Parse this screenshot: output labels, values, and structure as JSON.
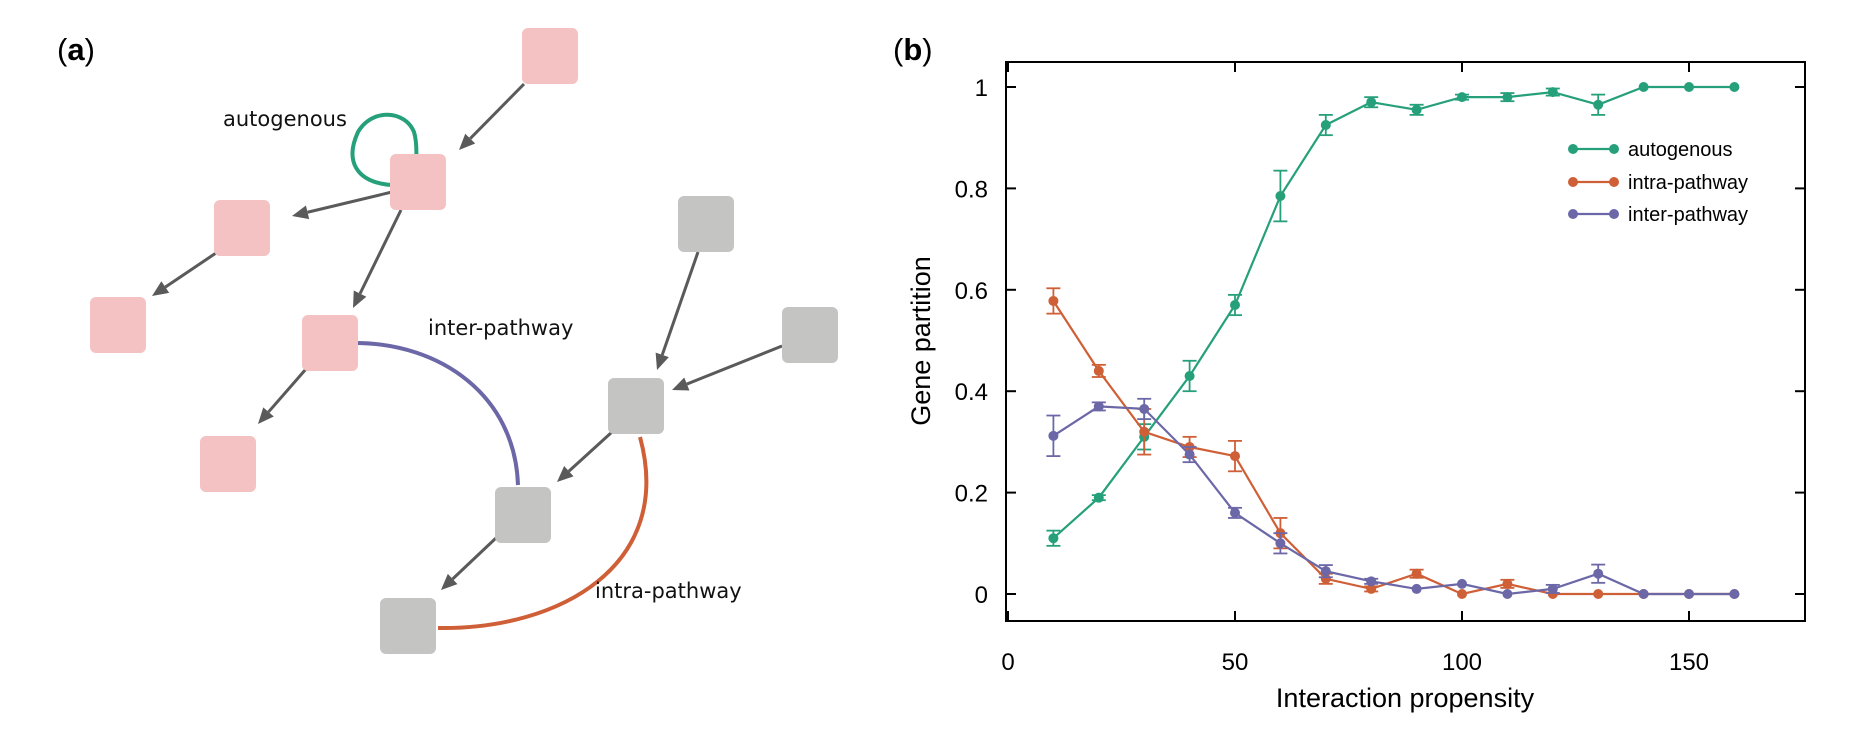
{
  "panel_a": {
    "label_open": "(",
    "label_letter": "a",
    "label_close": ")",
    "labels": {
      "autogenous": "autogenous",
      "inter_pathway": "inter-pathway",
      "intra_pathway": "intra-pathway"
    },
    "colors": {
      "pink_node": "#f4c2c2",
      "gray_node": "#c4c4c2",
      "arrow": "#5a5a5a",
      "autogenous": "#26a07a",
      "inter_pathway": "#6c68a8",
      "intra_pathway": "#cf5f36"
    }
  },
  "panel_b": {
    "label_open": "(",
    "label_letter": "b",
    "label_close": ")"
  },
  "chart_data": {
    "type": "line",
    "title": "",
    "xlabel": "Interaction propensity",
    "ylabel": "Gene partition",
    "xlim": [
      0,
      175
    ],
    "ylim": [
      -0.05,
      1.05
    ],
    "xticks": [
      0,
      50,
      100,
      150
    ],
    "yticks": [
      0,
      0.2,
      0.4,
      0.6,
      0.8,
      1
    ],
    "ytick_labels": [
      "0",
      "0.2",
      "0.4",
      "0.6",
      "0.8",
      "1"
    ],
    "xtick_labels": [
      "0",
      "50",
      "100",
      "150"
    ],
    "grid": false,
    "legend_position": "top-right",
    "x": [
      10,
      20,
      30,
      40,
      50,
      60,
      70,
      80,
      90,
      100,
      110,
      120,
      130,
      140,
      150,
      160
    ],
    "series": [
      {
        "name": "autogenous",
        "color": "#26a07a",
        "values": [
          0.11,
          0.19,
          0.31,
          0.43,
          0.57,
          0.785,
          0.925,
          0.97,
          0.955,
          0.98,
          0.98,
          0.99,
          0.965,
          1.0,
          1.0,
          1.0
        ],
        "errors": [
          0.015,
          0.005,
          0.025,
          0.03,
          0.02,
          0.05,
          0.02,
          0.01,
          0.01,
          0.005,
          0.008,
          0.007,
          0.02,
          0.0,
          0.0,
          0.0
        ]
      },
      {
        "name": "intra-pathway",
        "color": "#cf5f36",
        "values": [
          0.578,
          0.44,
          0.32,
          0.29,
          0.272,
          0.12,
          0.03,
          0.01,
          0.04,
          0.0,
          0.02,
          0.0,
          0.0,
          0.0,
          0.0,
          0.0
        ],
        "errors": [
          0.025,
          0.012,
          0.045,
          0.02,
          0.03,
          0.03,
          0.01,
          0.005,
          0.008,
          0.0,
          0.008,
          0.0,
          0.0,
          0.0,
          0.0,
          0.0
        ]
      },
      {
        "name": "inter-pathway",
        "color": "#6c68a8",
        "values": [
          0.312,
          0.37,
          0.365,
          0.275,
          0.16,
          0.1,
          0.045,
          0.025,
          0.01,
          0.02,
          0.0,
          0.01,
          0.04,
          0.0,
          0.0,
          0.0
        ],
        "errors": [
          0.04,
          0.008,
          0.02,
          0.015,
          0.01,
          0.02,
          0.012,
          0.005,
          0.0,
          0.0,
          0.0,
          0.008,
          0.018,
          0.0,
          0.0,
          0.0
        ]
      }
    ]
  }
}
